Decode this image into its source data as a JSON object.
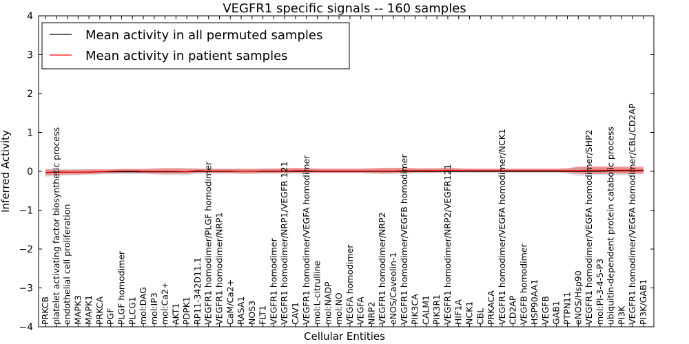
{
  "chart_data": {
    "type": "line",
    "title": "VEGFR1 specific signals -- 160 samples",
    "xlabel": "Cellular Entities",
    "ylabel": "Inferred Activity",
    "ylim": [
      -4,
      4
    ],
    "yticks": [
      4,
      3,
      2,
      1,
      0,
      -1,
      -2,
      -3,
      -4
    ],
    "ytick_labels": [
      "4",
      "3",
      "2",
      "1",
      "0",
      "−1",
      "−2",
      "−3",
      "−4"
    ],
    "legend_position": "top-left",
    "legend": [
      {
        "label": "Mean activity in all permuted samples",
        "color": "#000000"
      },
      {
        "label": "Mean activity in patient samples",
        "color": "#ff0000"
      }
    ],
    "categories": [
      "PRKCB",
      "platelet activating factor biosynthetic process",
      "endothelial cell proliferation",
      "MAPK3",
      "MAPK1",
      "PRKCA",
      "PGF",
      "PLGF homodimer",
      "PLCG1",
      "mol:DAG",
      "mol:IP3",
      "mol:Ca2+",
      "AKT1",
      "PDPK1",
      "RP11-342D11.1",
      "VEGFR1 homodimer/PLGF homodimer",
      "VEGFR1 homodimer/NRP1",
      "CaM/Ca2+",
      "RASA1",
      "NOS3",
      "FLT1",
      "VEGFR1 homodimer",
      "VEGFR1 homodimer/NRP1/VEGFR 121",
      "CAV1",
      "VEGFR1 homodimer/VEGFA homodimer",
      "mol:L-citrulline",
      "mol:NADP",
      "mol:NO",
      "VEGFA homodimer",
      "VEGFA",
      "NRP2",
      "VEGFR1 homodimer/NRP2",
      "eNOS/Caveolin-1",
      "VEGFR1 homodimer/VEGFB homodimer",
      "PIK3CA",
      "CALM1",
      "PIK3R1",
      "VEGFR1 homodimer/NRP2/VEGFR121",
      "HIF1A",
      "NCK1",
      "CBL",
      "PRKACA",
      "VEGFR1 homodimer/VEGFA homodimer/NCK1",
      "CD2AP",
      "VEGFB homodimer",
      "HSP90AA1",
      "VEGFB",
      "GAB1",
      "PTPN11",
      "eNOS/Hsp90",
      "VEGFR1 homodimer/VEGFA homodimer/SHP2",
      "mol:PI-3-4-5-P3",
      "ubiquitin-dependent protein catabolic process",
      "PI3K",
      "VEGFR1 homodimer/VEGFA homodimer/CBL/CD2AP",
      "PI3K/GAB1"
    ],
    "series": [
      {
        "name": "Mean activity in all permuted samples",
        "color": "#000000",
        "values": [
          -0.03,
          -0.02,
          -0.02,
          -0.02,
          -0.02,
          -0.01,
          -0.01,
          -0.01,
          -0.01,
          -0.01,
          -0.01,
          -0.01,
          -0.01,
          -0.01,
          0.0,
          0.0,
          0.0,
          0.0,
          0.0,
          0.0,
          0.0,
          0.0,
          0.0,
          0.0,
          0.0,
          0.0,
          0.0,
          0.0,
          0.0,
          0.0,
          0.0,
          0.0,
          0.0,
          0.0,
          0.0,
          0.0,
          0.0,
          0.0,
          0.0,
          0.0,
          0.0,
          0.0,
          0.0,
          0.0,
          0.0,
          0.0,
          0.0,
          0.0,
          0.0,
          0.0,
          0.0,
          0.0,
          0.01,
          0.01,
          0.01,
          0.01
        ],
        "band_low": [
          -0.14,
          -0.12,
          -0.11,
          -0.1,
          -0.09,
          -0.08,
          -0.07,
          -0.07,
          -0.07,
          -0.07,
          -0.08,
          -0.1,
          -0.1,
          -0.1,
          -0.06,
          -0.06,
          -0.06,
          -0.06,
          -0.06,
          -0.06,
          -0.06,
          -0.06,
          -0.06,
          -0.06,
          -0.06,
          -0.05,
          -0.05,
          -0.05,
          -0.05,
          -0.05,
          -0.06,
          -0.06,
          -0.06,
          -0.06,
          -0.06,
          -0.05,
          -0.05,
          -0.05,
          -0.05,
          -0.05,
          -0.05,
          -0.05,
          -0.05,
          -0.05,
          -0.05,
          -0.05,
          -0.05,
          -0.05,
          -0.06,
          -0.12,
          -0.1,
          -0.1,
          -0.1,
          -0.1,
          -0.08,
          -0.08
        ],
        "band_high": [
          0.07,
          0.06,
          0.06,
          0.06,
          0.06,
          0.06,
          0.06,
          0.06,
          0.06,
          0.06,
          0.07,
          0.08,
          0.08,
          0.08,
          0.07,
          0.07,
          0.07,
          0.07,
          0.07,
          0.07,
          0.07,
          0.07,
          0.07,
          0.07,
          0.07,
          0.06,
          0.06,
          0.06,
          0.06,
          0.06,
          0.07,
          0.07,
          0.07,
          0.07,
          0.07,
          0.07,
          0.07,
          0.07,
          0.06,
          0.06,
          0.06,
          0.06,
          0.06,
          0.06,
          0.06,
          0.06,
          0.06,
          0.06,
          0.07,
          0.1,
          0.1,
          0.1,
          0.1,
          0.1,
          0.09,
          0.09
        ]
      },
      {
        "name": "Mean activity in patient samples",
        "color": "#ff0000",
        "values": [
          -0.03,
          -0.03,
          -0.02,
          -0.02,
          -0.02,
          -0.01,
          0.0,
          0.01,
          0.01,
          0.0,
          0.0,
          0.0,
          0.0,
          -0.01,
          0.02,
          0.01,
          0.01,
          0.01,
          0.0,
          0.0,
          0.01,
          0.01,
          0.01,
          0.02,
          0.02,
          0.01,
          0.01,
          0.01,
          0.01,
          0.01,
          0.01,
          0.01,
          0.01,
          0.02,
          0.02,
          0.02,
          0.02,
          0.03,
          0.02,
          0.02,
          0.02,
          0.02,
          0.02,
          0.02,
          0.02,
          0.02,
          0.02,
          0.02,
          0.02,
          0.02,
          0.03,
          0.03,
          0.03,
          0.03,
          0.03,
          0.03
        ],
        "band_low": [
          -0.1,
          -0.09,
          -0.08,
          -0.08,
          -0.07,
          -0.06,
          -0.05,
          -0.04,
          -0.04,
          -0.05,
          -0.06,
          -0.06,
          -0.06,
          -0.06,
          -0.04,
          -0.05,
          -0.05,
          -0.05,
          -0.06,
          -0.06,
          -0.05,
          -0.05,
          -0.05,
          -0.04,
          -0.04,
          -0.04,
          -0.04,
          -0.04,
          -0.04,
          -0.04,
          -0.05,
          -0.06,
          -0.05,
          -0.04,
          -0.03,
          -0.03,
          -0.03,
          -0.02,
          -0.02,
          -0.02,
          -0.02,
          -0.02,
          -0.02,
          -0.02,
          -0.02,
          -0.02,
          -0.02,
          -0.02,
          -0.03,
          -0.06,
          -0.07,
          -0.07,
          -0.06,
          -0.06,
          -0.06,
          -0.06
        ],
        "band_high": [
          0.05,
          0.04,
          0.04,
          0.04,
          0.05,
          0.05,
          0.05,
          0.06,
          0.06,
          0.06,
          0.07,
          0.08,
          0.08,
          0.07,
          0.07,
          0.06,
          0.06,
          0.06,
          0.06,
          0.06,
          0.07,
          0.07,
          0.08,
          0.09,
          0.08,
          0.07,
          0.07,
          0.07,
          0.07,
          0.07,
          0.08,
          0.09,
          0.09,
          0.09,
          0.08,
          0.08,
          0.08,
          0.1,
          0.08,
          0.07,
          0.07,
          0.07,
          0.07,
          0.07,
          0.07,
          0.07,
          0.07,
          0.07,
          0.08,
          0.12,
          0.13,
          0.13,
          0.12,
          0.12,
          0.12,
          0.12
        ]
      }
    ]
  }
}
